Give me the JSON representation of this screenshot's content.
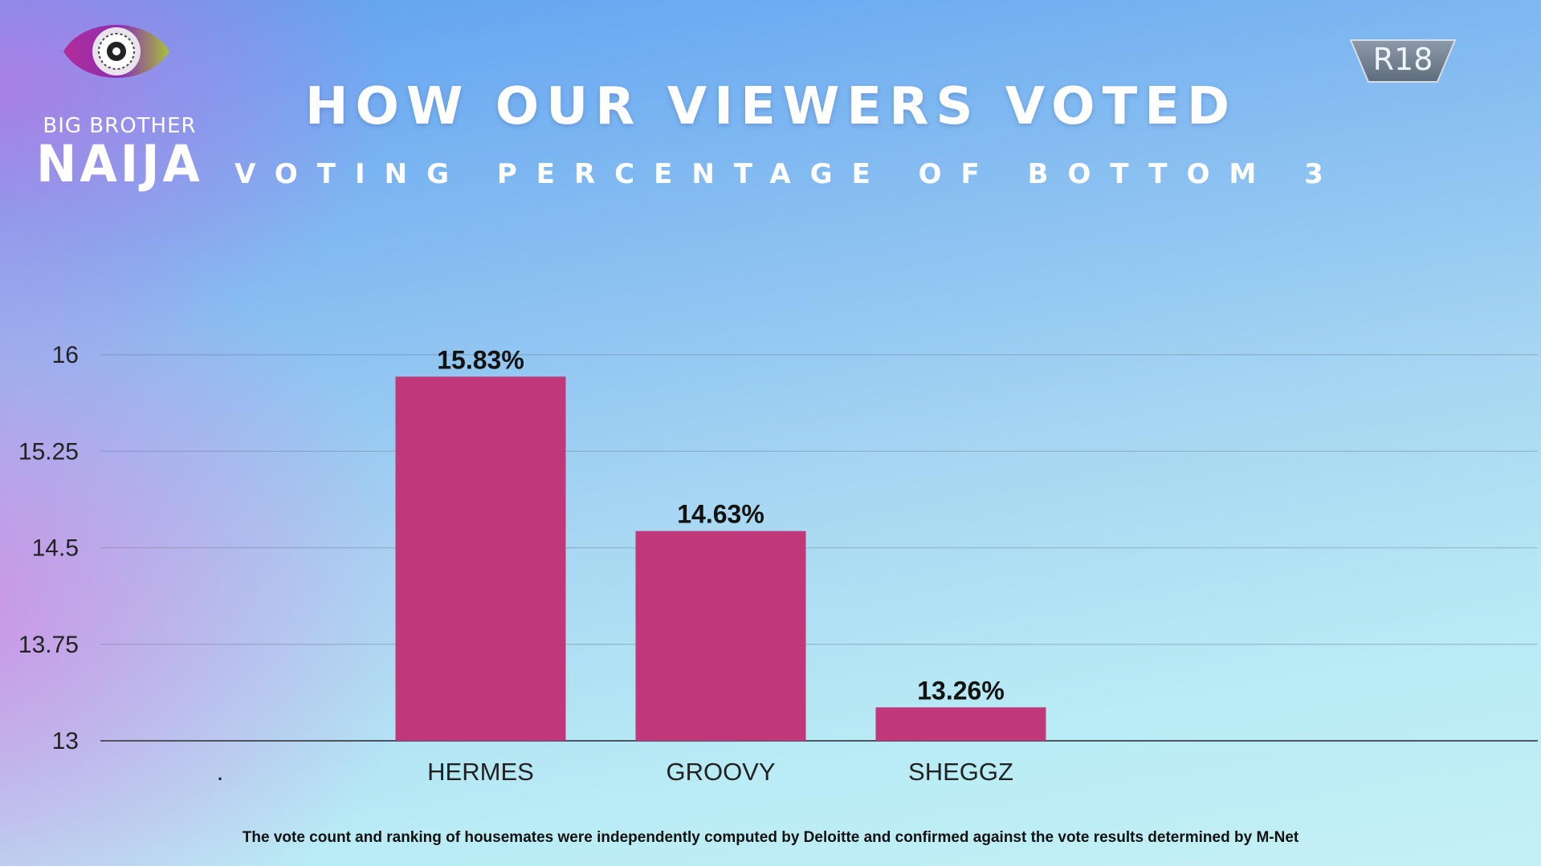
{
  "brand": {
    "line1": "BIG BROTHER",
    "line2": "NAIJA",
    "colors": {
      "eye_outer": "#8a2fb1",
      "eye_accent": "#e3d23a",
      "eye_green": "#6dbd3c"
    }
  },
  "rating": {
    "label": "R18"
  },
  "header": {
    "title": "HOW OUR VIEWERS VOTED",
    "subtitle": "VOTING PERCENTAGE OF BOTTOM 3"
  },
  "chart_data": {
    "type": "bar",
    "categories": [
      ".",
      "HERMES",
      "GROOVY",
      "SHEGGZ"
    ],
    "values": [
      null,
      15.83,
      14.63,
      13.26
    ],
    "data_labels": [
      "",
      "15.83%",
      "14.63%",
      "13.26%"
    ],
    "title": "",
    "xlabel": "",
    "ylabel": "",
    "ylim": [
      13,
      16
    ],
    "yticks": [
      13,
      13.75,
      14.5,
      15.25,
      16
    ],
    "ytick_labels": [
      "13",
      "13.75",
      "14.5",
      "15.25",
      "16"
    ],
    "grid": true,
    "bar_color": "#c0387a"
  },
  "footnote": "The vote count and ranking of housemates were independently computed by Deloitte and confirmed against the vote results determined by M-Net"
}
